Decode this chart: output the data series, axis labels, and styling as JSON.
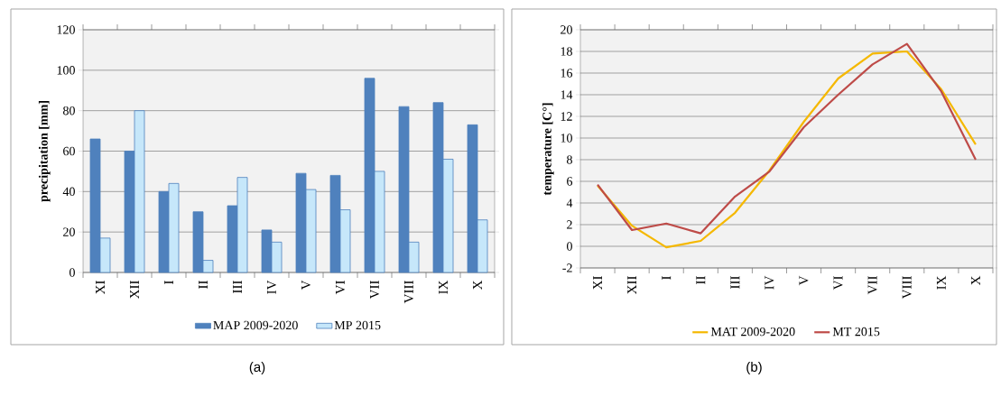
{
  "chart_data": [
    {
      "type": "bar",
      "ylabel": "precipitation [mm]",
      "categories": [
        "XI",
        "XII",
        "I",
        "II",
        "III",
        "IV",
        "V",
        "VI",
        "VII",
        "VIII",
        "IX",
        "X"
      ],
      "series": [
        {
          "name": "MAP 2009-2020",
          "color": "#4f81bd",
          "values": [
            66,
            60,
            40,
            30,
            33,
            21,
            49,
            48,
            96,
            82,
            84,
            73
          ]
        },
        {
          "name": "MP 2015",
          "color": "#c6e7fa",
          "values": [
            17,
            80,
            44,
            6,
            47,
            15,
            41,
            31,
            50,
            15,
            56,
            26
          ]
        }
      ],
      "ylim": [
        0,
        120
      ],
      "yticks": [
        0,
        20,
        40,
        60,
        80,
        100,
        120
      ],
      "grid": "y",
      "legend": "bottom",
      "annotations": [
        "(a)"
      ]
    },
    {
      "type": "line",
      "ylabel": "temperature [C°]",
      "categories": [
        "XI",
        "XII",
        "I",
        "II",
        "III",
        "IV",
        "V",
        "VI",
        "VII",
        "VIII",
        "IX",
        "X"
      ],
      "series": [
        {
          "name": "MAT 2009-2020",
          "color": "#f5b800",
          "values": [
            5.6,
            1.9,
            -0.1,
            0.5,
            3.1,
            7.0,
            11.5,
            15.5,
            17.8,
            18.0,
            14.5,
            9.4
          ]
        },
        {
          "name": "MT 2015",
          "color": "#be4b48",
          "values": [
            5.7,
            1.5,
            2.1,
            1.2,
            4.6,
            6.9,
            11.0,
            14.0,
            16.8,
            18.7,
            14.3,
            8.0
          ]
        }
      ],
      "ylim": [
        -2,
        20
      ],
      "yticks": [
        -2,
        0,
        2,
        4,
        6,
        8,
        10,
        12,
        14,
        16,
        18,
        20
      ],
      "grid": "y",
      "legend": "bottom",
      "annotations": [
        "(b)"
      ]
    }
  ]
}
